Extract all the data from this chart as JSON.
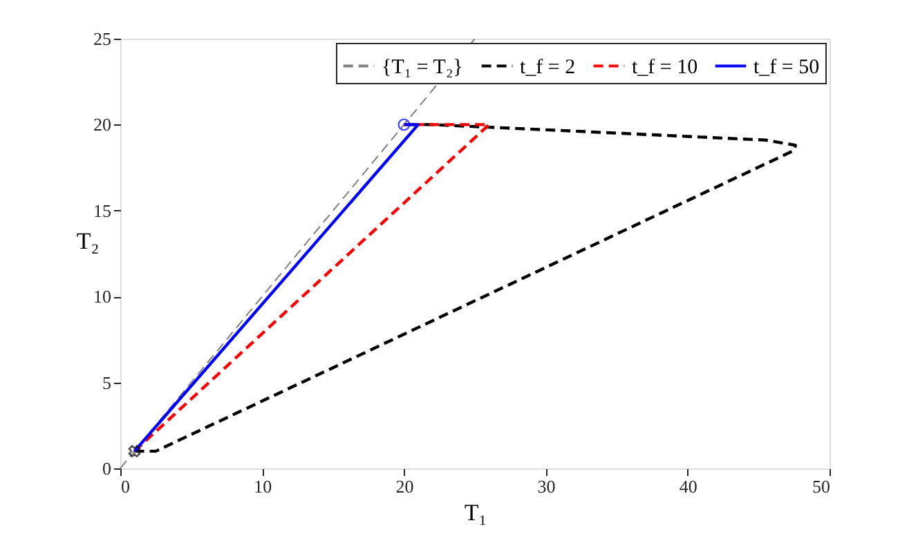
{
  "chart_data": {
    "type": "line",
    "xlabel": "T₁",
    "ylabel": "T₂",
    "xlim": [
      0,
      50
    ],
    "ylim": [
      0,
      25
    ],
    "xticks": [
      0,
      10,
      20,
      30,
      40,
      50
    ],
    "yticks": [
      0,
      5,
      10,
      15,
      20,
      25
    ],
    "grid": false,
    "legend": "top right",
    "marker": "none",
    "series": [
      {
        "name": "{T₁ = T₂}",
        "color": "#808080",
        "line_style": "dashed",
        "x": [
          0,
          25
        ],
        "values": [
          0,
          25
        ]
      },
      {
        "name": "t_f = 2",
        "color": "#000000",
        "line_style": "dashed",
        "x": [
          1,
          2.5,
          47.5,
          47.6,
          45.5,
          30,
          22,
          20
        ],
        "values": [
          1,
          1,
          18.5,
          18.8,
          19.1,
          19.7,
          20,
          20
        ]
      },
      {
        "name": "t_f = 10",
        "color": "#ff0000",
        "line_style": "dashed",
        "x": [
          1,
          26,
          20
        ],
        "values": [
          1,
          20,
          20
        ]
      },
      {
        "name": "t_f = 50",
        "color": "#0000ff",
        "line_style": "solid",
        "x": [
          1,
          21,
          20
        ],
        "values": [
          1,
          20,
          20
        ]
      },
      {
        "type": "scatter",
        "marker": "cross",
        "color": "#000000",
        "x": [
          1
        ],
        "values": [
          1
        ]
      },
      {
        "type": "scatter",
        "marker": "circle",
        "color": "#0000ff",
        "x": [
          20
        ],
        "values": [
          20
        ]
      }
    ]
  }
}
